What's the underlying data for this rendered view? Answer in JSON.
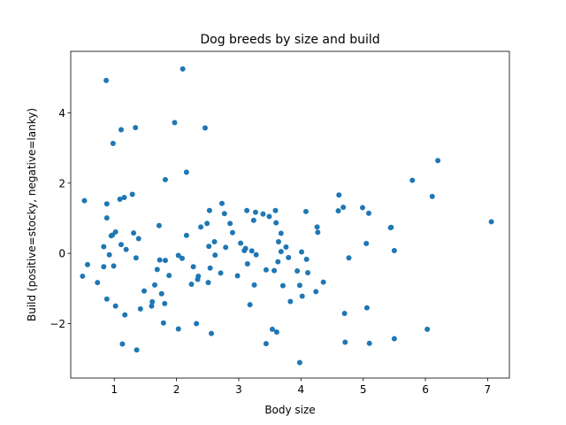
{
  "chart_data": {
    "type": "scatter",
    "title": "Dog breeds by size and build",
    "xlabel": "Body size",
    "ylabel": "Build (positive=stocky, negative=lanky)",
    "xlim": [
      0.3,
      7.35
    ],
    "ylim": [
      -3.55,
      5.75
    ],
    "xticks": [
      1,
      2,
      3,
      4,
      5,
      6,
      7
    ],
    "yticks": [
      -2,
      0,
      2,
      4
    ],
    "grid": false,
    "marker_color": "#1f77b4",
    "points": [
      [
        0.49,
        -0.65
      ],
      [
        0.52,
        1.5
      ],
      [
        0.57,
        -0.32
      ],
      [
        0.73,
        -0.83
      ],
      [
        0.83,
        0.19
      ],
      [
        0.83,
        -0.38
      ],
      [
        0.87,
        4.92
      ],
      [
        0.88,
        1.01
      ],
      [
        0.88,
        1.41
      ],
      [
        0.88,
        -1.3
      ],
      [
        0.92,
        -0.04
      ],
      [
        0.95,
        0.5
      ],
      [
        0.97,
        0.52
      ],
      [
        0.98,
        3.13
      ],
      [
        0.99,
        -0.36
      ],
      [
        1.02,
        0.61
      ],
      [
        1.02,
        -1.5
      ],
      [
        1.09,
        1.54
      ],
      [
        1.11,
        0.25
      ],
      [
        1.11,
        3.52
      ],
      [
        1.13,
        -2.58
      ],
      [
        1.16,
        1.59
      ],
      [
        1.17,
        -1.75
      ],
      [
        1.19,
        0.11
      ],
      [
        1.29,
        1.68
      ],
      [
        1.31,
        0.58
      ],
      [
        1.34,
        3.58
      ],
      [
        1.35,
        -0.13
      ],
      [
        1.36,
        -2.75
      ],
      [
        1.39,
        0.42
      ],
      [
        1.42,
        -1.58
      ],
      [
        1.48,
        -1.07
      ],
      [
        1.6,
        -1.5
      ],
      [
        1.61,
        -1.38
      ],
      [
        1.65,
        -0.9
      ],
      [
        1.69,
        -0.46
      ],
      [
        1.72,
        0.79
      ],
      [
        1.73,
        -0.19
      ],
      [
        1.76,
        -1.15
      ],
      [
        1.79,
        -1.98
      ],
      [
        1.81,
        -1.43
      ],
      [
        1.82,
        2.1
      ],
      [
        1.82,
        -0.2
      ],
      [
        1.88,
        -0.63
      ],
      [
        1.97,
        3.72
      ],
      [
        2.03,
        -2.15
      ],
      [
        2.03,
        -0.06
      ],
      [
        2.09,
        -0.14
      ],
      [
        2.1,
        5.25
      ],
      [
        2.16,
        2.31
      ],
      [
        2.16,
        0.51
      ],
      [
        2.24,
        -0.88
      ],
      [
        2.27,
        -0.38
      ],
      [
        2.32,
        -2.0
      ],
      [
        2.34,
        -0.74
      ],
      [
        2.35,
        -0.65
      ],
      [
        2.39,
        0.75
      ],
      [
        2.46,
        3.57
      ],
      [
        2.49,
        0.85
      ],
      [
        2.51,
        -0.83
      ],
      [
        2.52,
        0.2
      ],
      [
        2.53,
        1.22
      ],
      [
        2.54,
        -0.42
      ],
      [
        2.56,
        -2.28
      ],
      [
        2.61,
        0.33
      ],
      [
        2.62,
        -0.05
      ],
      [
        2.71,
        -0.56
      ],
      [
        2.73,
        1.42
      ],
      [
        2.77,
        1.13
      ],
      [
        2.79,
        0.17
      ],
      [
        2.86,
        0.85
      ],
      [
        2.9,
        0.59
      ],
      [
        2.98,
        -0.64
      ],
      [
        3.03,
        0.29
      ],
      [
        3.09,
        0.08
      ],
      [
        3.11,
        0.14
      ],
      [
        3.13,
        1.22
      ],
      [
        3.14,
        -0.3
      ],
      [
        3.18,
        -1.46
      ],
      [
        3.21,
        0.07
      ],
      [
        3.24,
        0.94
      ],
      [
        3.25,
        -0.9
      ],
      [
        3.27,
        1.17
      ],
      [
        3.28,
        -0.04
      ],
      [
        3.39,
        1.12
      ],
      [
        3.44,
        -0.47
      ],
      [
        3.44,
        -2.57
      ],
      [
        3.49,
        1.05
      ],
      [
        3.54,
        -2.16
      ],
      [
        3.57,
        -0.49
      ],
      [
        3.59,
        1.22
      ],
      [
        3.6,
        0.87
      ],
      [
        3.61,
        -2.24
      ],
      [
        3.63,
        -0.24
      ],
      [
        3.64,
        0.33
      ],
      [
        3.68,
        0.57
      ],
      [
        3.68,
        0.05
      ],
      [
        3.71,
        -0.92
      ],
      [
        3.76,
        0.18
      ],
      [
        3.8,
        -0.12
      ],
      [
        3.83,
        -1.37
      ],
      [
        3.94,
        -0.5
      ],
      [
        3.98,
        -0.91
      ],
      [
        3.98,
        -3.11
      ],
      [
        4.01,
        0.04
      ],
      [
        4.02,
        -1.22
      ],
      [
        4.08,
        1.19
      ],
      [
        4.09,
        -0.17
      ],
      [
        4.11,
        -0.55
      ],
      [
        4.24,
        -1.09
      ],
      [
        4.26,
        0.75
      ],
      [
        4.27,
        0.6
      ],
      [
        4.36,
        -0.82
      ],
      [
        4.6,
        1.21
      ],
      [
        4.61,
        1.66
      ],
      [
        4.68,
        1.31
      ],
      [
        4.7,
        -1.71
      ],
      [
        4.71,
        -2.53
      ],
      [
        4.77,
        -0.13
      ],
      [
        4.99,
        1.3
      ],
      [
        5.05,
        0.28
      ],
      [
        5.06,
        -1.55
      ],
      [
        5.09,
        1.14
      ],
      [
        5.1,
        -2.56
      ],
      [
        5.44,
        0.73
      ],
      [
        5.45,
        0.74
      ],
      [
        5.5,
        0.08
      ],
      [
        5.5,
        -2.43
      ],
      [
        5.79,
        2.08
      ],
      [
        6.03,
        -2.16
      ],
      [
        6.11,
        1.62
      ],
      [
        6.2,
        2.64
      ],
      [
        7.06,
        0.9
      ]
    ]
  }
}
